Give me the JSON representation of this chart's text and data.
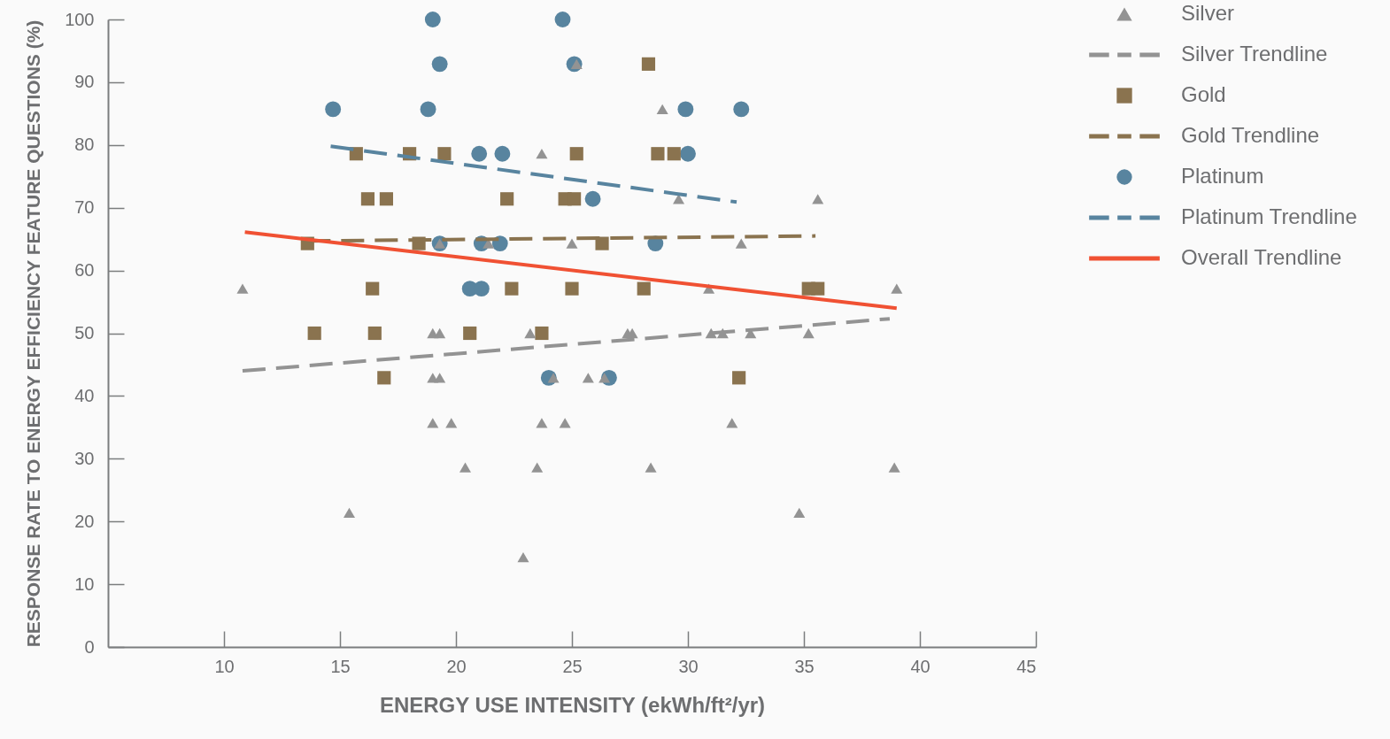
{
  "chart_data": {
    "type": "scatter",
    "xlabel": "ENERGY USE INTENSITY (ekWh/ft²/yr)",
    "ylabel": "RESPONSE RATE TO ENERGY EFFICIENCY FEATURE QUESTIONS (%)",
    "xlim": [
      5,
      45
    ],
    "xticks": [
      10,
      15,
      20,
      25,
      30,
      35,
      40,
      45
    ],
    "ylim": [
      0,
      100
    ],
    "yticks": [
      0,
      10,
      20,
      30,
      40,
      50,
      60,
      70,
      80,
      90,
      100
    ],
    "grid": false,
    "legend": "right",
    "series": [
      {
        "name": "Silver",
        "marker": "triangle",
        "color": "#939393",
        "x": [
          10.8,
          15.4,
          19.0,
          19.8,
          19.0,
          19.3,
          19.0,
          19.3,
          20.4,
          19.3,
          21.4,
          25.0,
          32.3,
          23.7,
          25.2,
          28.9,
          29.6,
          30.9,
          35.6,
          39.0,
          23.2,
          27.4,
          27.6,
          31.0,
          31.5,
          32.7,
          35.2,
          24.2,
          25.7,
          26.4,
          23.7,
          24.7,
          31.9,
          23.5,
          28.4,
          38.9,
          22.9,
          34.8
        ],
        "values": [
          57.1,
          21.4,
          35.7,
          35.7,
          42.9,
          42.9,
          50,
          50,
          28.6,
          64.3,
          64.3,
          64.3,
          64.3,
          78.6,
          92.9,
          85.7,
          71.4,
          57.1,
          71.4,
          57.1,
          50,
          50,
          50,
          50,
          50,
          50,
          50,
          42.9,
          42.9,
          42.9,
          35.7,
          35.7,
          35.7,
          28.6,
          28.6,
          28.6,
          14.3,
          21.4
        ]
      },
      {
        "name": "Silver Trendline",
        "type": "line",
        "line_style": "dashed",
        "color": "#939393",
        "x": [
          10.8,
          38.7
        ],
        "values": [
          44.0,
          52.3
        ]
      },
      {
        "name": "Gold",
        "marker": "square",
        "color": "#8a734f",
        "x": [
          15.7,
          18.0,
          19.5,
          16.2,
          17.0,
          13.6,
          18.4,
          16.4,
          13.9,
          16.5,
          16.9,
          25.2,
          28.7,
          29.4,
          28.3,
          22.2,
          24.7,
          25.1,
          26.3,
          22.4,
          25.0,
          28.1,
          20.6,
          23.7,
          32.2,
          35.2,
          35.6
        ],
        "values": [
          78.6,
          78.6,
          78.6,
          71.4,
          71.4,
          64.3,
          64.3,
          57.1,
          50,
          50,
          42.9,
          78.6,
          78.6,
          78.6,
          92.9,
          71.4,
          71.4,
          71.4,
          64.3,
          57.1,
          57.1,
          57.1,
          50,
          50,
          42.9,
          57.1,
          57.1
        ]
      },
      {
        "name": "Gold Trendline",
        "type": "line",
        "line_style": "dashed",
        "color": "#8a734f",
        "x": [
          13.6,
          35.5
        ],
        "values": [
          64.7,
          65.5
        ]
      },
      {
        "name": "Platinum",
        "marker": "circle",
        "color": "#58849f",
        "x": [
          19.0,
          19.3,
          14.7,
          18.8,
          19.3,
          24.6,
          25.1,
          29.9,
          32.3,
          21.0,
          22.0,
          30.0,
          25.9,
          21.1,
          21.9,
          28.6,
          20.6,
          21.1,
          24.0,
          26.6
        ],
        "values": [
          100,
          92.9,
          85.7,
          85.7,
          64.3,
          100,
          92.9,
          85.7,
          85.7,
          78.6,
          78.6,
          78.6,
          71.4,
          64.3,
          64.3,
          64.3,
          57.1,
          57.1,
          42.9,
          42.9
        ]
      },
      {
        "name": "Platinum Trendline",
        "type": "line",
        "line_style": "dashed",
        "color": "#58849f",
        "x": [
          14.6,
          32.1
        ],
        "values": [
          79.8,
          70.9
        ]
      },
      {
        "name": "Overall Trendline",
        "type": "line",
        "line_style": "solid",
        "color": "#f05133",
        "x": [
          10.9,
          39.0
        ],
        "values": [
          66.1,
          54.0
        ]
      }
    ]
  }
}
